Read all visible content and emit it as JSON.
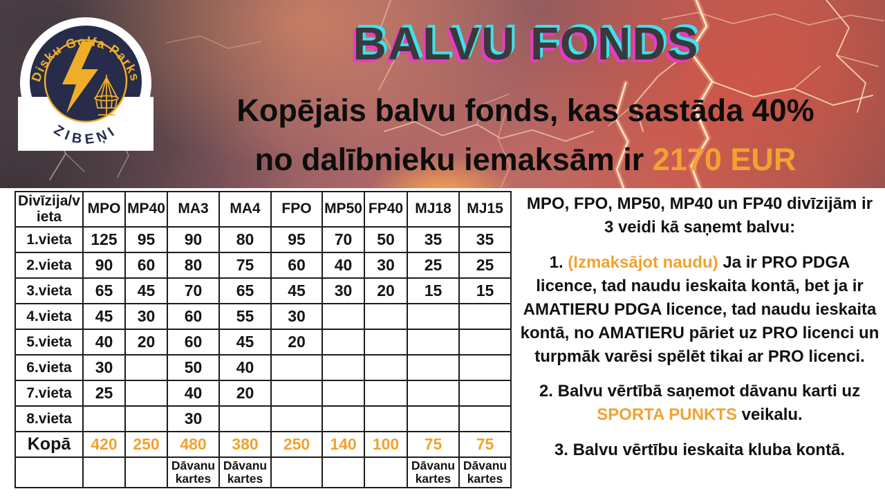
{
  "hero": {
    "title": "BALVU FONDS",
    "subtitle_line1": "Kopējais balvu fonds, kas sastāda 40%",
    "subtitle_line2": "no dalībnieku iemaksām ir",
    "subtitle_highlight": "2170 EUR"
  },
  "logo": {
    "top_text": "Disku Golfa Parks",
    "bottom_text": "ZIBEŅI"
  },
  "colors": {
    "accent_orange": "#f0a330",
    "title_letters": "#3a3a3a",
    "title_glow_cyan": "#3ee1ef",
    "title_glow_magenta": "#e73bc4",
    "logo_navy": "#262c49",
    "logo_gold": "#f0ad2a",
    "table_border": "#1c1c1c",
    "panel_background": "#ffffff"
  },
  "table": {
    "columns": [
      "Divīzija/vieta",
      "MPO",
      "MP40",
      "MA3",
      "MA4",
      "FPO",
      "MP50",
      "FP40",
      "MJ18",
      "MJ15"
    ],
    "rows": [
      {
        "type": "place",
        "label": "1.vieta",
        "values": [
          "125",
          "95",
          "90",
          "80",
          "95",
          "70",
          "50",
          "35",
          "35"
        ]
      },
      {
        "type": "place",
        "label": "2.vieta",
        "values": [
          "90",
          "60",
          "80",
          "75",
          "60",
          "40",
          "30",
          "25",
          "25"
        ]
      },
      {
        "type": "place",
        "label": "3.vieta",
        "values": [
          "65",
          "45",
          "70",
          "65",
          "45",
          "30",
          "20",
          "15",
          "15"
        ]
      },
      {
        "type": "place",
        "label": "4.vieta",
        "values": [
          "45",
          "30",
          "60",
          "55",
          "30",
          "",
          "",
          "",
          ""
        ]
      },
      {
        "type": "place",
        "label": "5.vieta",
        "values": [
          "40",
          "20",
          "60",
          "45",
          "20",
          "",
          "",
          "",
          ""
        ]
      },
      {
        "type": "place",
        "label": "6.vieta",
        "values": [
          "30",
          "",
          "50",
          "40",
          "",
          "",
          "",
          "",
          ""
        ]
      },
      {
        "type": "place",
        "label": "7.vieta",
        "values": [
          "25",
          "",
          "40",
          "20",
          "",
          "",
          "",
          "",
          ""
        ]
      },
      {
        "type": "place",
        "label": "8.vieta",
        "values": [
          "",
          "",
          "30",
          "",
          "",
          "",
          "",
          "",
          ""
        ]
      },
      {
        "type": "total",
        "label": "Kopā",
        "values": [
          "420",
          "250",
          "480",
          "380",
          "250",
          "140",
          "100",
          "75",
          "75"
        ]
      },
      {
        "type": "gift",
        "label": "",
        "values": [
          "",
          "",
          "Dāvanu kartes",
          "Dāvanu kartes",
          "",
          "",
          "",
          "Dāvanu kartes",
          "Dāvanu kartes"
        ]
      }
    ]
  },
  "info": {
    "intro": "MPO, FPO, MP50, MP40 un FP40 divīzijām ir 3 veidi kā saņemt balvu:",
    "item1_prefix": "1.",
    "item1_highlight": "(Izmaksājot naudu)",
    "item1_rest": "Ja ir PRO PDGA licence, tad naudu ieskaita kontā, bet ja ir AMATIERU PDGA licence, tad naudu ieskaita kontā, no AMATIERU pāriet uz PRO licenci un turpmāk varēsi spēlēt tikai ar PRO licenci.",
    "item2_prefix": "2. Balvu vērtībā saņemot dāvanu karti uz",
    "item2_highlight": "SPORTA PUNKTS",
    "item2_suffix": "veikalu.",
    "item3": "3. Balvu vērtību ieskaita kluba kontā."
  }
}
